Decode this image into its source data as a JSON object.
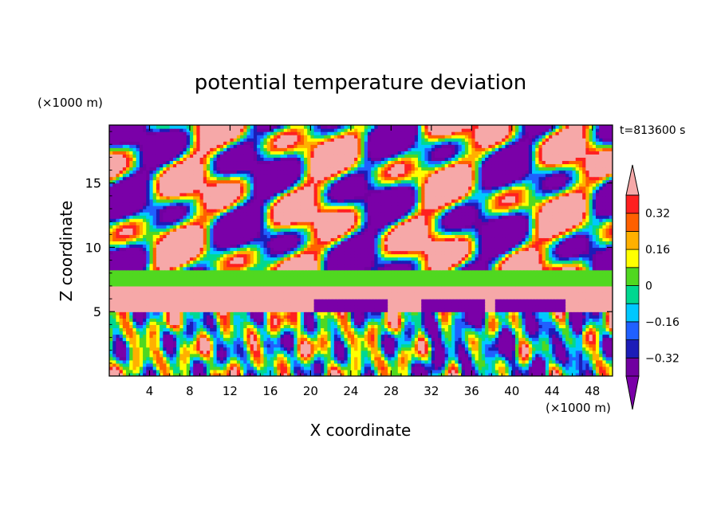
{
  "chart_data": {
    "type": "heatmap",
    "title": "potential temperature deviation",
    "xlabel": "X coordinate",
    "ylabel": "Z coordinate",
    "x_unit": "(×1000 m)",
    "y_unit": "(×1000 m)",
    "time_label": "t=813600 s",
    "xlim": [
      0,
      50
    ],
    "ylim": [
      0,
      19.5
    ],
    "x_ticks": [
      4,
      8,
      12,
      16,
      20,
      24,
      28,
      32,
      36,
      40,
      44,
      48
    ],
    "y_ticks": [
      5,
      10,
      15
    ],
    "colorbar": {
      "levels": [
        -0.4,
        -0.32,
        -0.24,
        -0.16,
        -0.08,
        0,
        0.08,
        0.16,
        0.24,
        0.32,
        0.4
      ],
      "labels": [
        "-0.32",
        "-0.16",
        "0",
        "0.16",
        "0.32"
      ],
      "label_values": [
        -0.32,
        -0.16,
        0,
        0.16,
        0.32
      ],
      "colors": [
        "#7a00a8",
        "#7000a0",
        "#1c1cb8",
        "#2060ff",
        "#00c8ff",
        "#00d890",
        "#50d820",
        "#ffff00",
        "#ffb000",
        "#ff6000",
        "#ff2020",
        "#f6a8a8"
      ],
      "extend": "both"
    },
    "bands": [
      {
        "zmin": 7.0,
        "zmax": 8.2,
        "value": 0.05,
        "note": ""
      },
      {
        "zmin": 6.0,
        "zmax": 6.3,
        "value": 0.45,
        "note": ""
      }
    ]
  }
}
